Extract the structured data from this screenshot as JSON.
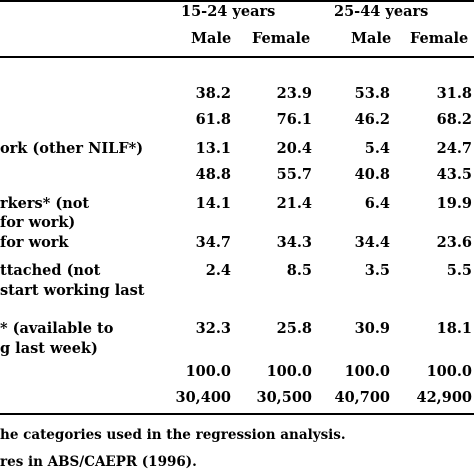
{
  "groups": [
    {
      "label": "15-24 years"
    },
    {
      "label": "25-44 years"
    }
  ],
  "columns": [
    "Male",
    "Female",
    "Male",
    "Female"
  ],
  "rows": [
    {
      "label": [
        ""
      ],
      "values": [
        "38.2",
        "23.9",
        "53.8",
        "31.8"
      ]
    },
    {
      "label": [
        ""
      ],
      "values": [
        "61.8",
        "76.1",
        "46.2",
        "68.2"
      ]
    },
    {
      "label": [
        "ork (other NILF*)"
      ],
      "values": [
        "13.1",
        "20.4",
        "5.4",
        "24.7"
      ]
    },
    {
      "label": [
        ""
      ],
      "values": [
        "48.8",
        "55.7",
        "40.8",
        "43.5"
      ]
    },
    {
      "label": [
        "rkers* (not",
        "for work)"
      ],
      "values": [
        "14.1",
        "21.4",
        "6.4",
        "19.9"
      ]
    },
    {
      "label": [
        "for work"
      ],
      "values": [
        "34.7",
        "34.3",
        "34.4",
        "23.6"
      ]
    },
    {
      "label": [
        "ttached (not",
        "start working last"
      ],
      "values": [
        "2.4",
        "8.5",
        "3.5",
        "5.5"
      ]
    },
    {
      "label": [
        "* (available to",
        "g last week)"
      ],
      "values": [
        "32.3",
        "25.8",
        "30.9",
        "18.1"
      ]
    },
    {
      "label": [
        ""
      ],
      "values": [
        "100.0",
        "100.0",
        "100.0",
        "100.0"
      ]
    },
    {
      "label": [
        ""
      ],
      "values": [
        "30,400",
        "30,500",
        "40,700",
        "42,900"
      ]
    }
  ],
  "footnotes": [
    "he categories used in the regression analysis.",
    "res in ABS/CAEPR (1996)."
  ]
}
